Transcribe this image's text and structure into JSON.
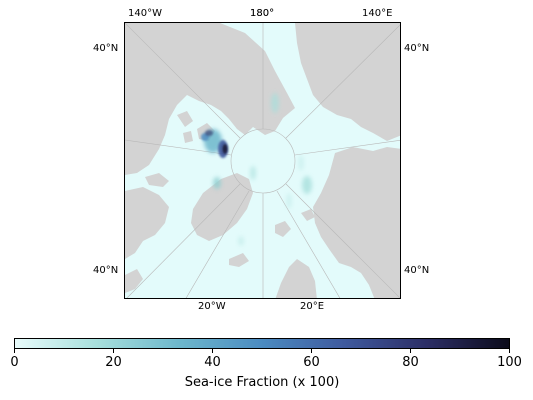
{
  "map": {
    "projection": "north-polar-stereographic",
    "land_color": "#d3d3d3",
    "ocean_color": "#e3fbfb",
    "gridline_color": "#b8b8b8",
    "coordinate_labels": {
      "top_left_lon": "140°W",
      "top_center_lon_a": "180°",
      "top_center_lon_b": "180°",
      "top_right_lon": "140°E",
      "left_upper_lat": "40°N",
      "right_upper_lat": "40°N",
      "left_lower_lat": "40°N",
      "right_lower_lat": "40°N",
      "bottom_left_lon": "20°W",
      "bottom_right_lon": "20°E"
    }
  },
  "colorbar": {
    "colormap": "ice",
    "color_stops": [
      "#e8fbfb",
      "#a7dfdc",
      "#6db7cc",
      "#4b8bc1",
      "#3f5a9e",
      "#2c2e66",
      "#0b0b1a"
    ],
    "tick_labels": [
      "0",
      "20",
      "40",
      "60",
      "80",
      "100"
    ],
    "title": "Sea-ice Fraction (x 100)"
  }
}
